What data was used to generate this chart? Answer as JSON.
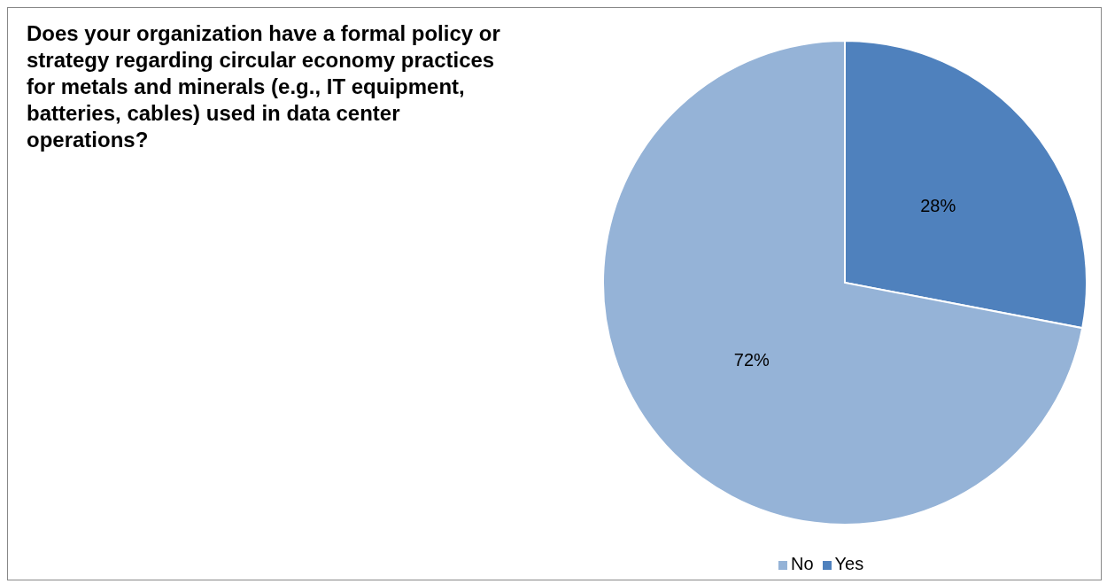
{
  "chart_data": {
    "type": "pie",
    "title": "Does your organization have a formal policy or strategy regarding circular economy practices for metals and minerals (e.g., IT equipment, batteries, cables) used in data center operations?",
    "categories": [
      "Yes",
      "No"
    ],
    "values": [
      28,
      72
    ],
    "colors": [
      "#4f81bd",
      "#95b3d7"
    ],
    "value_labels": [
      "28%",
      "72%"
    ],
    "legend": "bottom"
  }
}
